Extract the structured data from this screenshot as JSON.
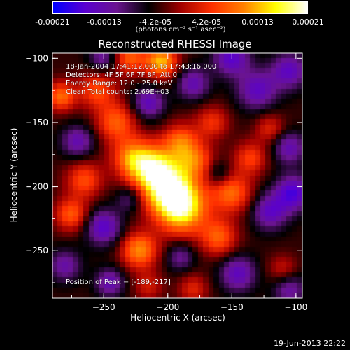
{
  "colorbar": {
    "ticks": [
      "-0.00021",
      "-0.00013",
      "-4.2e-05",
      "4.2e-05",
      "0.00013",
      "0.00021"
    ],
    "range": [
      -0.00021,
      0.00021
    ],
    "unit_label": "(photons cm⁻² s⁻¹ asec⁻²)",
    "colors": [
      "#0000ff",
      "#5a00d0",
      "#6a1490",
      "#000000",
      "#a00000",
      "#ff3000",
      "#ff8000",
      "#ffff00",
      "#ffffff"
    ]
  },
  "chart_data": {
    "type": "heatmap",
    "title": "Reconstructed RHESSI Image",
    "xlabel": "Heliocentric X (arcsec)",
    "ylabel": "Heliocentric Y (arcsec)",
    "xlim": [
      -290,
      -95
    ],
    "ylim": [
      -287,
      -96
    ],
    "xticks": [
      -250,
      -200,
      -150,
      -100
    ],
    "yticks": [
      -100,
      -150,
      -200,
      -250
    ],
    "xtick_labels": [
      "−250",
      "−200",
      "−150",
      "−100"
    ],
    "ytick_labels": [
      "−100",
      "−150",
      "−200",
      "−250"
    ],
    "peak": [
      -189,
      -217
    ],
    "blobs": [
      {
        "x": -189,
        "y": -217,
        "amp": 1.0,
        "sigma": 14
      },
      {
        "x": -200,
        "y": -200,
        "amp": 0.9,
        "sigma": 14
      },
      {
        "x": -212,
        "y": -185,
        "amp": 0.75,
        "sigma": 12
      },
      {
        "x": -228,
        "y": -178,
        "amp": 0.6,
        "sigma": 11
      },
      {
        "x": -190,
        "y": -165,
        "amp": 0.55,
        "sigma": 10
      },
      {
        "x": -178,
        "y": -180,
        "amp": 0.5,
        "sigma": 10
      },
      {
        "x": -240,
        "y": -150,
        "amp": 0.55,
        "sigma": 11
      },
      {
        "x": -255,
        "y": -125,
        "amp": 0.5,
        "sigma": 10
      },
      {
        "x": -230,
        "y": -100,
        "amp": 0.55,
        "sigma": 9
      },
      {
        "x": -205,
        "y": -103,
        "amp": 0.8,
        "sigma": 9
      },
      {
        "x": -283,
        "y": -130,
        "amp": 0.6,
        "sigma": 8
      },
      {
        "x": -265,
        "y": -195,
        "amp": 0.5,
        "sigma": 10
      },
      {
        "x": -275,
        "y": -222,
        "amp": 0.55,
        "sigma": 9
      },
      {
        "x": -222,
        "y": -250,
        "amp": 0.7,
        "sigma": 10
      },
      {
        "x": -150,
        "y": -205,
        "amp": 0.6,
        "sigma": 11
      },
      {
        "x": -160,
        "y": -240,
        "amp": 0.55,
        "sigma": 10
      },
      {
        "x": -135,
        "y": -178,
        "amp": 0.45,
        "sigma": 9
      },
      {
        "x": -165,
        "y": -150,
        "amp": 0.4,
        "sigma": 9
      },
      {
        "x": -120,
        "y": -155,
        "amp": 0.35,
        "sigma": 8
      },
      {
        "x": -110,
        "y": -265,
        "amp": 0.3,
        "sigma": 8
      },
      {
        "x": -180,
        "y": -280,
        "amp": 0.35,
        "sigma": 8
      },
      {
        "x": -215,
        "y": -278,
        "amp": 0.3,
        "sigma": 8
      },
      {
        "x": -150,
        "y": -100,
        "amp": -0.55,
        "sigma": 10
      },
      {
        "x": -130,
        "y": -125,
        "amp": -0.5,
        "sigma": 11
      },
      {
        "x": -105,
        "y": -110,
        "amp": -0.5,
        "sigma": 10
      },
      {
        "x": -102,
        "y": -205,
        "amp": -0.6,
        "sigma": 10
      },
      {
        "x": -120,
        "y": -220,
        "amp": -0.5,
        "sigma": 10
      },
      {
        "x": -215,
        "y": -135,
        "amp": -0.5,
        "sigma": 9
      },
      {
        "x": -180,
        "y": -120,
        "amp": -0.45,
        "sigma": 9
      },
      {
        "x": -270,
        "y": -165,
        "amp": -0.45,
        "sigma": 9
      },
      {
        "x": -250,
        "y": -232,
        "amp": -0.55,
        "sigma": 10
      },
      {
        "x": -145,
        "y": -268,
        "amp": -0.5,
        "sigma": 10
      },
      {
        "x": -280,
        "y": -262,
        "amp": -0.4,
        "sigma": 9
      },
      {
        "x": -245,
        "y": -275,
        "amp": -0.45,
        "sigma": 8
      },
      {
        "x": -105,
        "y": -280,
        "amp": -0.4,
        "sigma": 9
      },
      {
        "x": -190,
        "y": -255,
        "amp": -0.35,
        "sigma": 8
      },
      {
        "x": -230,
        "y": -210,
        "amp": -0.3,
        "sigma": 7
      },
      {
        "x": -160,
        "y": -190,
        "amp": -0.3,
        "sigma": 7
      },
      {
        "x": -105,
        "y": -170,
        "amp": -0.45,
        "sigma": 9
      },
      {
        "x": -250,
        "y": -100,
        "amp": -0.4,
        "sigma": 8
      }
    ]
  },
  "annotations": {
    "time": "18-Jan-2004 17:41:12.000 to 17:43:16.000",
    "detectors": "Detectors: 4F 5F 6F 7F 8F, Att 0",
    "energy": "Energy Range: 12.0 - 25.0 keV",
    "clean": "Clean     Total counts: 2.69E+03",
    "peak": "Position of Peak = [-189,-217]"
  },
  "timestamp": "19-Jun-2013 22:22"
}
